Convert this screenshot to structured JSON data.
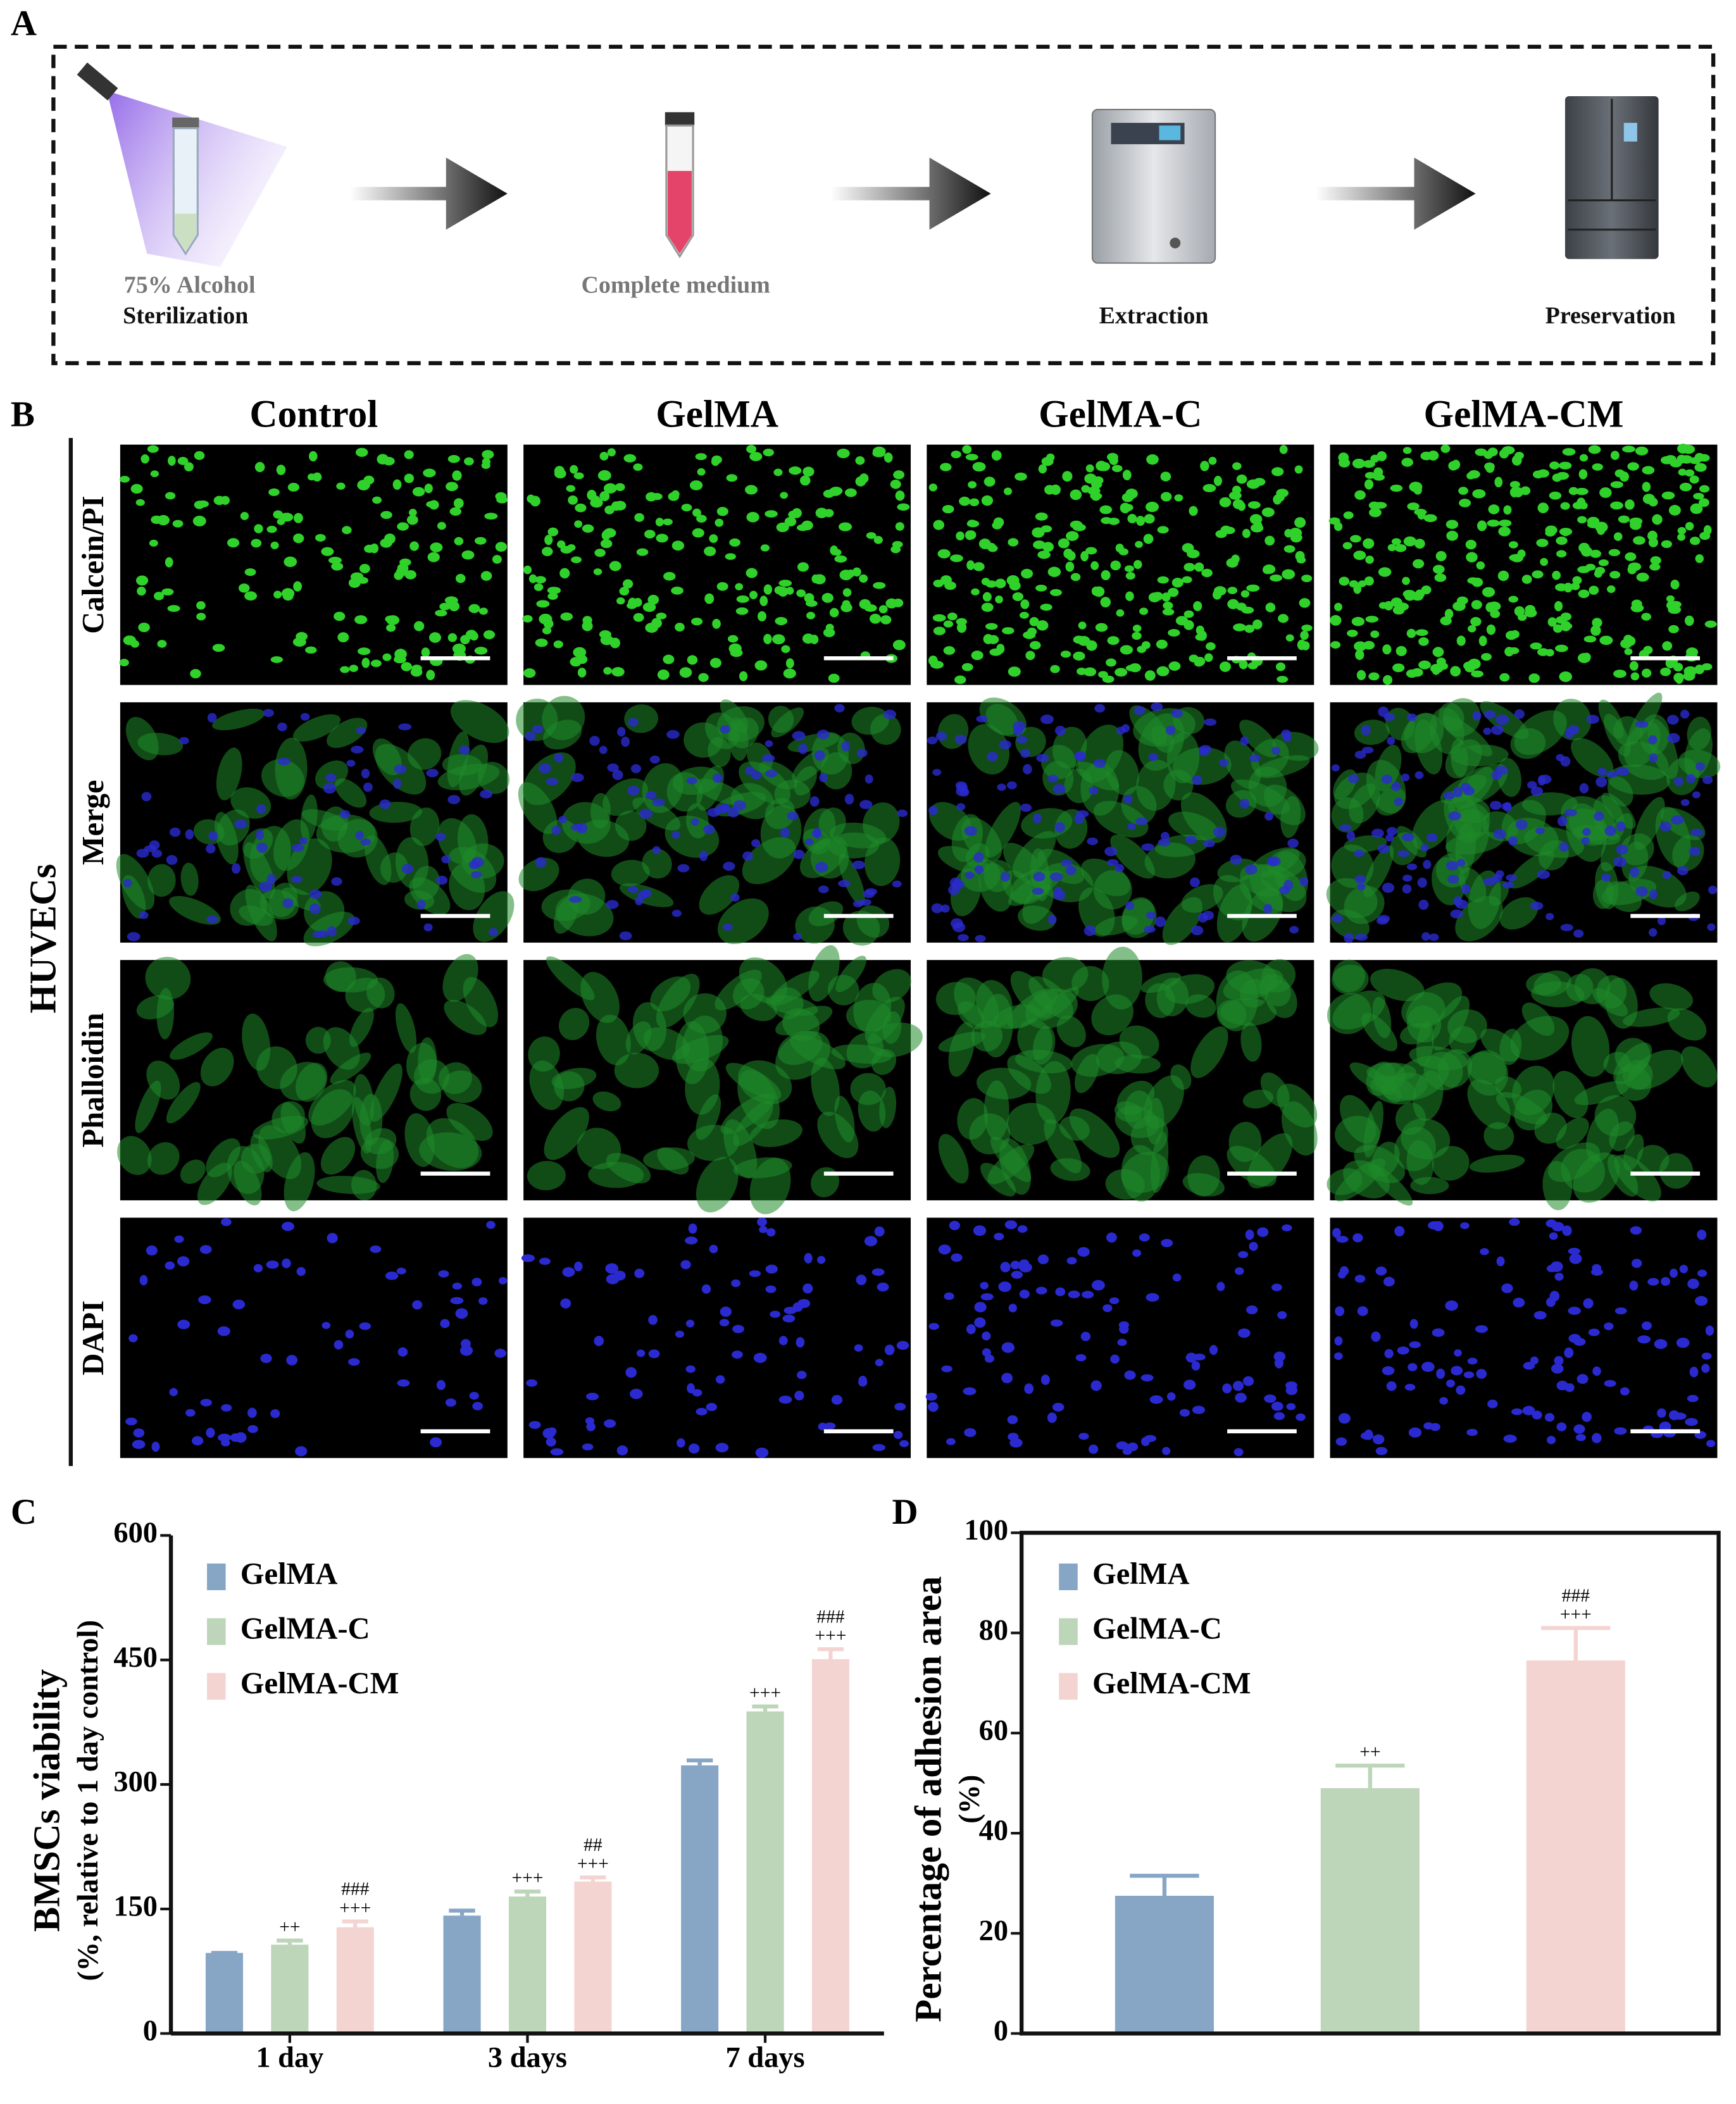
{
  "panel_labels": [
    "A",
    "B",
    "C",
    "D"
  ],
  "panel_a": {
    "steps": [
      {
        "lines": [
          "75% Alcohol",
          "Sterilization"
        ]
      },
      {
        "lines": [
          "Complete medium"
        ]
      },
      {
        "lines": [
          "Extraction"
        ]
      },
      {
        "lines": [
          "Preservation"
        ]
      }
    ]
  },
  "panel_b": {
    "group_label": "HUVECs",
    "columns": [
      "Control",
      "GelMA",
      "GelMA-C",
      "GelMA-CM"
    ],
    "rows": [
      "Calcein/PI",
      "Merge",
      "Phalloidin",
      "DAPI"
    ]
  },
  "chart_data": [
    {
      "type": "bar",
      "ylabel": [
        "BMSCs viability",
        "(%, relative to 1 day control)"
      ],
      "categories": [
        "1 day",
        "3 days",
        "7 days"
      ],
      "ylim": [
        0,
        600
      ],
      "yticks": [
        0,
        150,
        300,
        450,
        600
      ],
      "legend": "upper left",
      "series": [
        {
          "name": "GelMA",
          "color": "#87a6c6",
          "values": [
            97,
            142,
            323
          ],
          "errors": [
            0,
            6,
            6
          ]
        },
        {
          "name": "GelMA-C",
          "color": "#bdd5b9",
          "values": [
            107,
            165,
            388
          ],
          "errors": [
            5,
            6,
            6
          ],
          "annotations": [
            [
              "++"
            ],
            [
              "+++"
            ],
            [
              "+++"
            ]
          ]
        },
        {
          "name": "GelMA-CM",
          "color": "#f4d4d1",
          "values": [
            128,
            183,
            451
          ],
          "errors": [
            7,
            5,
            12
          ],
          "annotations": [
            [
              "###",
              "+++"
            ],
            [
              "##",
              "+++"
            ],
            [
              "###",
              "+++"
            ]
          ]
        }
      ]
    },
    {
      "type": "bar",
      "ylabel": [
        "Percentage of adhesion area",
        "(%)"
      ],
      "categories": [
        null
      ],
      "ylim": [
        0,
        100
      ],
      "yticks": [
        0,
        20,
        40,
        60,
        80,
        100
      ],
      "legend": "upper left",
      "frame": true,
      "series": [
        {
          "name": "GelMA",
          "color": "#87a6c6",
          "values": [
            27.5
          ],
          "errors": [
            4
          ]
        },
        {
          "name": "GelMA-C",
          "color": "#bdd5b9",
          "values": [
            49
          ],
          "errors": [
            4.5
          ],
          "annotations": [
            [
              "++"
            ]
          ]
        },
        {
          "name": "GelMA-CM",
          "color": "#f4d4d1",
          "values": [
            74.5
          ],
          "errors": [
            6.5
          ],
          "annotations": [
            [
              "###",
              "+++"
            ]
          ]
        }
      ]
    }
  ]
}
